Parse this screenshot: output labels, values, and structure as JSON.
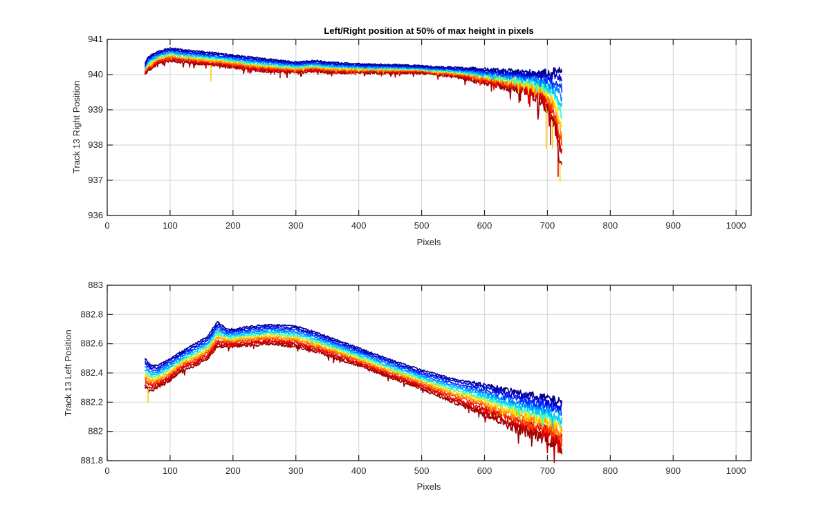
{
  "chart_data": [
    {
      "type": "line",
      "title": "Left/Right position at 50% of max height in pixels",
      "xlabel": "Pixels",
      "ylabel": "Track 13 Right Position",
      "xlim": [
        0,
        1024
      ],
      "ylim": [
        936,
        941
      ],
      "xticks": [
        "0",
        "100",
        "200",
        "300",
        "400",
        "500",
        "600",
        "700",
        "800",
        "900",
        "1000"
      ],
      "yticks": [
        "936",
        "937",
        "938",
        "939",
        "940",
        "941"
      ],
      "grid": true,
      "legend": "none",
      "series_colors": [
        "#00008f",
        "#0000d8",
        "#0030ff",
        "#0080ff",
        "#00c8ff",
        "#3cffc3",
        "#ffe000",
        "#ff9000",
        "#ff3c00",
        "#e60000",
        "#b40000",
        "#990000"
      ],
      "envelope": {
        "x": [
          60,
          65,
          80,
          100,
          120,
          150,
          180,
          200,
          250,
          300,
          330,
          350,
          400,
          450,
          500,
          520,
          550,
          580,
          600,
          620,
          650,
          670,
          690,
          700,
          705,
          710,
          715,
          720,
          723
        ],
        "upper": [
          940.3,
          940.5,
          940.65,
          940.75,
          940.7,
          940.65,
          940.6,
          940.55,
          940.45,
          940.35,
          940.4,
          940.35,
          940.3,
          940.28,
          940.25,
          940.22,
          940.2,
          940.18,
          940.15,
          940.12,
          940.08,
          940.06,
          940.05,
          940.05,
          940.05,
          940.1,
          940.12,
          940.15,
          940.1
        ],
        "lower": [
          940.0,
          940.1,
          940.3,
          940.4,
          940.35,
          940.3,
          940.25,
          940.2,
          940.1,
          940.05,
          940.1,
          940.05,
          940.05,
          940.05,
          940.05,
          940.0,
          939.95,
          939.85,
          939.75,
          939.7,
          939.6,
          939.5,
          939.3,
          939.0,
          938.8,
          938.6,
          938.2,
          937.5,
          937.4
        ]
      },
      "dips": [
        {
          "x": 165,
          "y": 939.8
        },
        {
          "x": 275,
          "y": 939.9
        },
        {
          "x": 698,
          "y": 937.9
        },
        {
          "x": 705,
          "y": 938.0
        },
        {
          "x": 708,
          "y": 937.9
        },
        {
          "x": 717,
          "y": 937.1
        },
        {
          "x": 720,
          "y": 936.95
        }
      ]
    },
    {
      "type": "line",
      "title": "",
      "xlabel": "Pixels",
      "ylabel": "Track 13 Left Position",
      "xlim": [
        0,
        1024
      ],
      "ylim": [
        881.8,
        883
      ],
      "xticks": [
        "0",
        "100",
        "200",
        "300",
        "400",
        "500",
        "600",
        "700",
        "800",
        "900",
        "1000"
      ],
      "yticks": [
        "881.8",
        "882",
        "882.2",
        "882.4",
        "882.6",
        "882.8",
        "883"
      ],
      "grid": true,
      "legend": "none",
      "series_colors": [
        "#00008f",
        "#0000d8",
        "#0030ff",
        "#0080ff",
        "#00c8ff",
        "#3cffc3",
        "#ffe000",
        "#ff9000",
        "#ff3c00",
        "#e60000",
        "#b40000",
        "#990000"
      ],
      "envelope": {
        "x": [
          60,
          70,
          80,
          100,
          120,
          140,
          160,
          175,
          190,
          200,
          230,
          260,
          300,
          330,
          350,
          400,
          450,
          500,
          550,
          600,
          650,
          700,
          723
        ],
        "upper": [
          882.5,
          882.45,
          882.45,
          882.5,
          882.55,
          882.6,
          882.65,
          882.75,
          882.7,
          882.7,
          882.72,
          882.73,
          882.72,
          882.68,
          882.65,
          882.57,
          882.49,
          882.42,
          882.36,
          882.32,
          882.27,
          882.23,
          882.2
        ],
        "lower": [
          882.3,
          882.28,
          882.3,
          882.35,
          882.42,
          882.45,
          882.5,
          882.58,
          882.58,
          882.58,
          882.59,
          882.6,
          882.58,
          882.55,
          882.52,
          882.45,
          882.37,
          882.29,
          882.2,
          882.12,
          882.02,
          881.95,
          881.88
        ]
      },
      "dips": [
        {
          "x": 65,
          "y": 882.2
        },
        {
          "x": 720,
          "y": 881.85
        }
      ]
    }
  ]
}
